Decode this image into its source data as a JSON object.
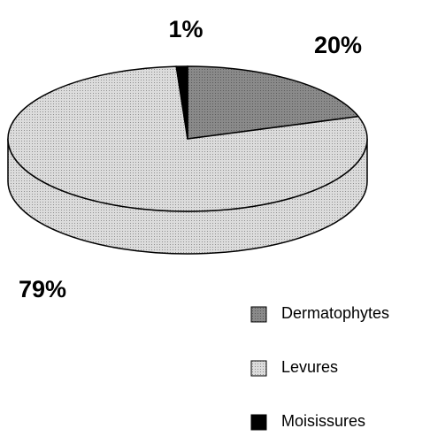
{
  "chart_data": {
    "type": "pie3d",
    "categories": [
      "Dermatophytes",
      "Levures",
      "Moisissures"
    ],
    "values": [
      20,
      79,
      1
    ],
    "value_labels": [
      "20%",
      "79%",
      "1%"
    ],
    "colors": [
      "#8a8a8a",
      "#dcdcdc",
      "#000000"
    ],
    "start_angle": 0,
    "direction": "clockwise"
  }
}
